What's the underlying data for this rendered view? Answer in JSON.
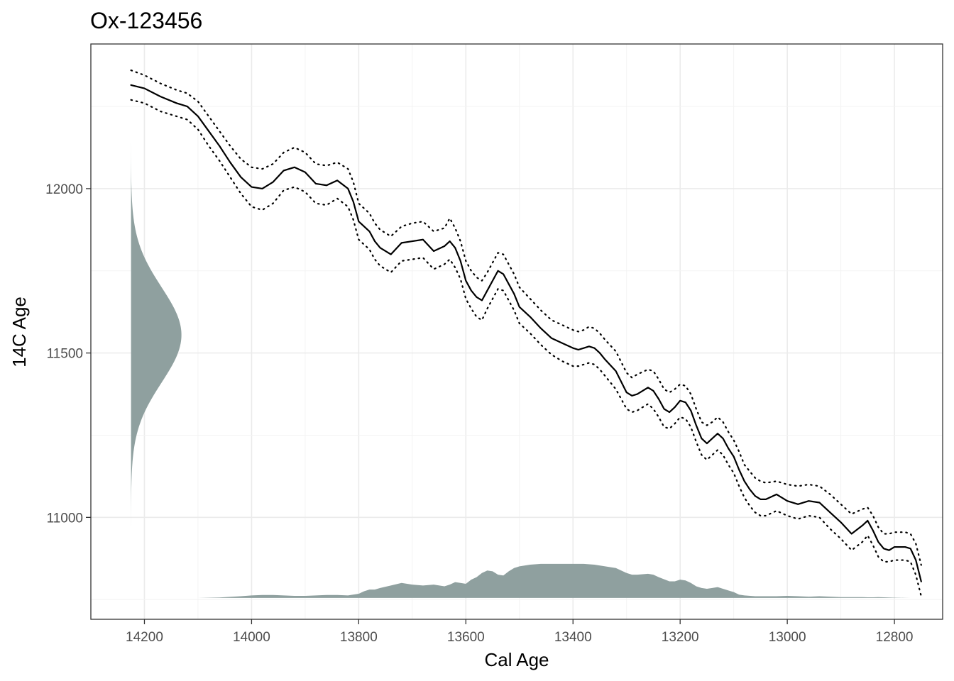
{
  "chart_data": {
    "type": "line",
    "title": "Ox-123456",
    "xlabel": "Cal Age",
    "ylabel": "14C Age",
    "x_reversed": true,
    "xlim": [
      14300,
      12710
    ],
    "ylim": [
      10690,
      12440
    ],
    "x_ticks": [
      14200,
      14000,
      13800,
      13600,
      13400,
      13200,
      13000,
      12800
    ],
    "y_ticks": [
      11000,
      11500,
      12000
    ],
    "grid": true,
    "colors": {
      "curve": "#000000",
      "density_fill": "#8fa09f",
      "panel_border": "#333333",
      "grid_major": "#ebebeb",
      "grid_minor": "#f3f3f3"
    },
    "series": [
      {
        "role": "calibration-curve-mean",
        "style": "solid",
        "x": [
          14225,
          14200,
          14170,
          14140,
          14120,
          14100,
          14080,
          14060,
          14040,
          14020,
          14000,
          13980,
          13960,
          13940,
          13920,
          13900,
          13880,
          13860,
          13840,
          13820,
          13810,
          13800,
          13790,
          13780,
          13770,
          13760,
          13740,
          13720,
          13700,
          13680,
          13660,
          13640,
          13630,
          13620,
          13610,
          13600,
          13590,
          13580,
          13570,
          13560,
          13540,
          13530,
          13520,
          13510,
          13500,
          13480,
          13460,
          13440,
          13420,
          13400,
          13390,
          13380,
          13370,
          13360,
          13350,
          13340,
          13320,
          13300,
          13290,
          13280,
          13260,
          13250,
          13240,
          13230,
          13220,
          13210,
          13200,
          13190,
          13180,
          13170,
          13160,
          13150,
          13140,
          13130,
          13120,
          13110,
          13100,
          13090,
          13080,
          13070,
          13060,
          13050,
          13040,
          13020,
          13000,
          12980,
          12960,
          12940,
          12920,
          12900,
          12880,
          12860,
          12850,
          12840,
          12830,
          12820,
          12810,
          12800,
          12790,
          12780,
          12770,
          12760,
          12750
        ],
        "y": [
          12315,
          12305,
          12280,
          12260,
          12250,
          12220,
          12175,
          12130,
          12080,
          12035,
          12005,
          12000,
          12020,
          12055,
          12065,
          12050,
          12015,
          12010,
          12025,
          12000,
          11960,
          11900,
          11885,
          11870,
          11840,
          11820,
          11800,
          11835,
          11840,
          11845,
          11810,
          11825,
          11840,
          11820,
          11780,
          11720,
          11690,
          11670,
          11660,
          11690,
          11750,
          11740,
          11710,
          11680,
          11640,
          11610,
          11575,
          11545,
          11530,
          11515,
          11510,
          11515,
          11520,
          11515,
          11500,
          11480,
          11445,
          11380,
          11370,
          11375,
          11395,
          11385,
          11360,
          11330,
          11320,
          11335,
          11355,
          11350,
          11325,
          11280,
          11240,
          11225,
          11240,
          11255,
          11240,
          11210,
          11185,
          11145,
          11110,
          11085,
          11065,
          11055,
          11055,
          11070,
          11050,
          11040,
          11050,
          11045,
          11015,
          10985,
          10950,
          10975,
          10990,
          10960,
          10925,
          10905,
          10900,
          10910,
          10910,
          10910,
          10905,
          10870,
          10805
        ]
      },
      {
        "role": "calibration-curve-upper",
        "style": "dotted",
        "x": [
          14225,
          14200,
          14170,
          14140,
          14120,
          14100,
          14080,
          14060,
          14040,
          14020,
          14000,
          13980,
          13960,
          13940,
          13920,
          13900,
          13880,
          13860,
          13840,
          13820,
          13810,
          13800,
          13790,
          13780,
          13770,
          13760,
          13740,
          13720,
          13700,
          13680,
          13660,
          13640,
          13630,
          13620,
          13610,
          13600,
          13590,
          13580,
          13570,
          13560,
          13540,
          13530,
          13520,
          13510,
          13500,
          13480,
          13460,
          13440,
          13420,
          13400,
          13390,
          13380,
          13370,
          13360,
          13350,
          13340,
          13320,
          13300,
          13290,
          13280,
          13260,
          13250,
          13240,
          13230,
          13220,
          13210,
          13200,
          13190,
          13180,
          13170,
          13160,
          13150,
          13140,
          13130,
          13120,
          13110,
          13100,
          13090,
          13080,
          13070,
          13060,
          13050,
          13040,
          13020,
          13000,
          12980,
          12960,
          12940,
          12920,
          12900,
          12880,
          12860,
          12850,
          12840,
          12830,
          12820,
          12810,
          12800,
          12790,
          12780,
          12770,
          12760,
          12750
        ],
        "y": [
          12360,
          12345,
          12320,
          12300,
          12290,
          12265,
          12220,
          12175,
          12130,
          12090,
          12065,
          12060,
          12075,
          12110,
          12125,
          12110,
          12075,
          12070,
          12080,
          12060,
          12020,
          11955,
          11940,
          11925,
          11895,
          11875,
          11855,
          11885,
          11895,
          11900,
          11870,
          11880,
          11910,
          11880,
          11840,
          11780,
          11750,
          11730,
          11720,
          11745,
          11805,
          11800,
          11770,
          11740,
          11700,
          11665,
          11630,
          11600,
          11585,
          11570,
          11565,
          11570,
          11580,
          11575,
          11560,
          11540,
          11505,
          11440,
          11425,
          11435,
          11450,
          11445,
          11420,
          11390,
          11380,
          11390,
          11405,
          11400,
          11375,
          11330,
          11290,
          11280,
          11290,
          11305,
          11290,
          11260,
          11235,
          11200,
          11160,
          11140,
          11120,
          11110,
          11105,
          11110,
          11100,
          11095,
          11100,
          11095,
          11070,
          11040,
          11010,
          11025,
          11030,
          11005,
          10970,
          10950,
          10950,
          10955,
          10955,
          10955,
          10950,
          10920,
          10855
        ]
      },
      {
        "role": "calibration-curve-lower",
        "style": "dotted",
        "x": [
          14225,
          14200,
          14170,
          14140,
          14120,
          14100,
          14080,
          14060,
          14040,
          14020,
          14000,
          13980,
          13960,
          13940,
          13920,
          13900,
          13880,
          13860,
          13840,
          13820,
          13810,
          13800,
          13790,
          13780,
          13770,
          13760,
          13740,
          13720,
          13700,
          13680,
          13660,
          13640,
          13630,
          13620,
          13610,
          13600,
          13590,
          13580,
          13570,
          13560,
          13540,
          13530,
          13520,
          13510,
          13500,
          13480,
          13460,
          13440,
          13420,
          13400,
          13390,
          13380,
          13370,
          13360,
          13350,
          13340,
          13320,
          13300,
          13290,
          13280,
          13260,
          13250,
          13240,
          13230,
          13220,
          13210,
          13200,
          13190,
          13180,
          13170,
          13160,
          13150,
          13140,
          13130,
          13120,
          13110,
          13100,
          13090,
          13080,
          13070,
          13060,
          13050,
          13040,
          13020,
          13000,
          12980,
          12960,
          12940,
          12920,
          12900,
          12880,
          12860,
          12850,
          12840,
          12830,
          12820,
          12810,
          12800,
          12790,
          12780,
          12770,
          12760,
          12750
        ],
        "y": [
          12270,
          12260,
          12235,
          12220,
          12210,
          12180,
          12130,
          12085,
          12035,
          11985,
          11945,
          11935,
          11955,
          11995,
          12005,
          11990,
          11955,
          11950,
          11970,
          11945,
          11905,
          11845,
          11830,
          11815,
          11785,
          11765,
          11745,
          11780,
          11785,
          11790,
          11755,
          11770,
          11785,
          11760,
          11725,
          11665,
          11635,
          11610,
          11600,
          11635,
          11695,
          11690,
          11660,
          11630,
          11590,
          11560,
          11525,
          11495,
          11475,
          11460,
          11460,
          11465,
          11470,
          11465,
          11450,
          11430,
          11390,
          11330,
          11320,
          11325,
          11345,
          11330,
          11305,
          11275,
          11270,
          11285,
          11305,
          11300,
          11275,
          11230,
          11190,
          11175,
          11190,
          11205,
          11190,
          11160,
          11135,
          11095,
          11060,
          11035,
          11015,
          11005,
          11005,
          11020,
          11005,
          10995,
          11005,
          11000,
          10965,
          10935,
          10900,
          10925,
          10945,
          10915,
          10880,
          10865,
          10865,
          10870,
          10870,
          10870,
          10865,
          10825,
          10760
        ]
      }
    ],
    "radiocarbon_density": {
      "role": "measurement-density",
      "orientation": "vertical",
      "mean": 11555,
      "sd": 145,
      "y_range": [
        10855,
        12235
      ]
    },
    "calendar_density": {
      "role": "calibrated-density",
      "orientation": "horizontal",
      "x": [
        14225,
        14100,
        14060,
        14020,
        14000,
        13980,
        13960,
        13940,
        13920,
        13900,
        13880,
        13860,
        13840,
        13820,
        13800,
        13790,
        13780,
        13770,
        13760,
        13740,
        13720,
        13700,
        13680,
        13660,
        13640,
        13630,
        13620,
        13610,
        13600,
        13590,
        13580,
        13570,
        13560,
        13550,
        13540,
        13530,
        13520,
        13510,
        13500,
        13480,
        13460,
        13440,
        13420,
        13400,
        13380,
        13360,
        13340,
        13320,
        13300,
        13290,
        13280,
        13260,
        13250,
        13240,
        13220,
        13210,
        13200,
        13190,
        13180,
        13170,
        13160,
        13150,
        13140,
        13130,
        13120,
        13110,
        13100,
        13090,
        13080,
        13060,
        13040,
        13020,
        13000,
        12980,
        12960,
        12940,
        12920,
        12900,
        12880,
        12860,
        12850,
        12840,
        12830,
        12820,
        12810,
        12800,
        12790,
        12780,
        12770,
        12760,
        12750
      ],
      "density": [
        0,
        0,
        0.005,
        0.02,
        0.03,
        0.035,
        0.035,
        0.03,
        0.025,
        0.025,
        0.03,
        0.035,
        0.035,
        0.03,
        0.05,
        0.08,
        0.1,
        0.1,
        0.12,
        0.15,
        0.18,
        0.16,
        0.15,
        0.16,
        0.14,
        0.16,
        0.19,
        0.18,
        0.17,
        0.22,
        0.25,
        0.3,
        0.33,
        0.32,
        0.28,
        0.27,
        0.32,
        0.36,
        0.38,
        0.4,
        0.41,
        0.41,
        0.41,
        0.41,
        0.41,
        0.4,
        0.38,
        0.36,
        0.3,
        0.28,
        0.28,
        0.29,
        0.28,
        0.25,
        0.2,
        0.2,
        0.22,
        0.21,
        0.18,
        0.14,
        0.12,
        0.11,
        0.12,
        0.13,
        0.11,
        0.09,
        0.07,
        0.04,
        0.03,
        0.02,
        0.02,
        0.02,
        0.025,
        0.02,
        0.015,
        0.02,
        0.015,
        0.01,
        0.01,
        0.01,
        0.008,
        0.008,
        0.01,
        0.008,
        0.005,
        0.003,
        0.002,
        0.001,
        0,
        0,
        0
      ]
    }
  }
}
